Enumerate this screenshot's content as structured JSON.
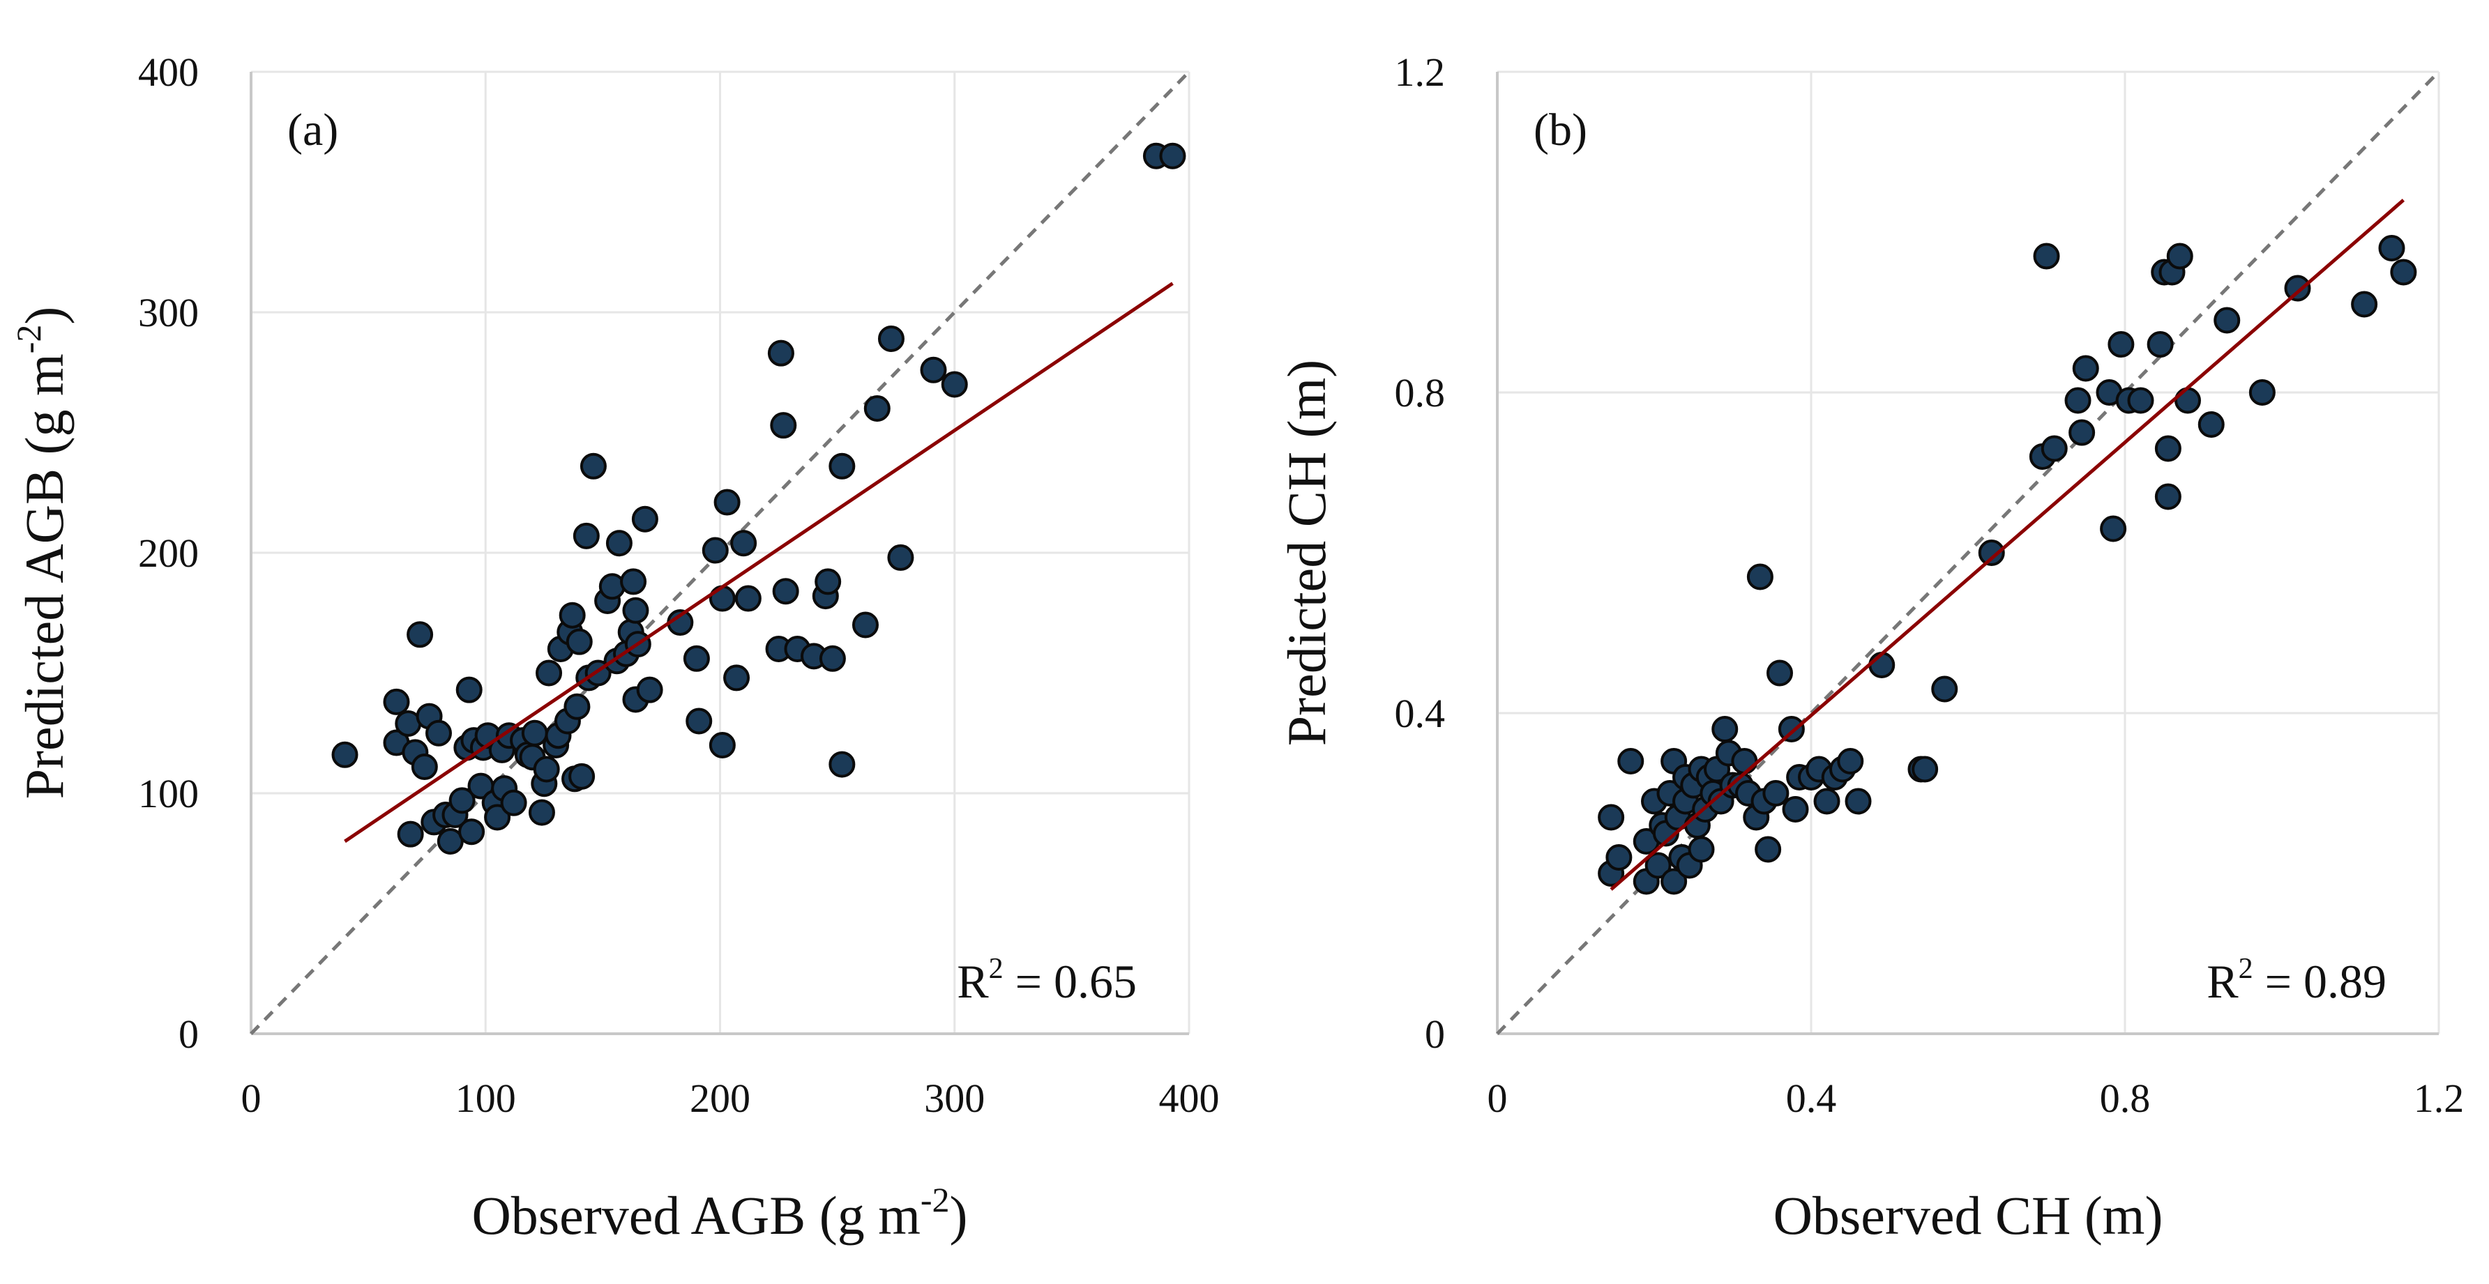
{
  "chart_data": [
    {
      "type": "scatter",
      "panel_label": "(a)",
      "xlabel": "Observed AGB (g m",
      "xlabel_sup": "-2",
      "xlabel_end": ")",
      "ylabel": "Predicted AGB (g m",
      "ylabel_sup": "-2",
      "ylabel_end": ")",
      "xlim": [
        0,
        400
      ],
      "ylim": [
        0,
        400
      ],
      "xticks": [
        0,
        100,
        200,
        300,
        400
      ],
      "yticks": [
        0,
        100,
        200,
        300,
        400
      ],
      "xtick_labels": [
        "0",
        "100",
        "200",
        "300",
        "400"
      ],
      "ytick_labels": [
        "0",
        "100",
        "200",
        "300",
        "400"
      ],
      "grid": true,
      "r2_prefix": "R",
      "r2_sup": "2",
      "r2_value": " = 0.65",
      "one_to_one_line": {
        "from": [
          0,
          0
        ],
        "to": [
          400,
          400
        ],
        "style": "dashed"
      },
      "fit_line": {
        "x1": 40,
        "y1": 80,
        "x2": 393,
        "y2": 312
      },
      "points": [
        [
          40,
          116
        ],
        [
          62,
          138
        ],
        [
          62,
          121
        ],
        [
          67,
          129
        ],
        [
          68,
          83
        ],
        [
          70,
          117
        ],
        [
          72,
          166
        ],
        [
          74,
          111
        ],
        [
          76,
          132
        ],
        [
          78,
          88
        ],
        [
          80,
          125
        ],
        [
          83,
          91
        ],
        [
          85,
          80
        ],
        [
          87,
          91
        ],
        [
          90,
          97
        ],
        [
          92,
          119
        ],
        [
          93,
          143
        ],
        [
          94,
          84
        ],
        [
          95,
          122
        ],
        [
          98,
          103
        ],
        [
          99,
          119
        ],
        [
          101,
          124
        ],
        [
          104,
          96
        ],
        [
          105,
          90
        ],
        [
          107,
          118
        ],
        [
          108,
          102
        ],
        [
          110,
          124
        ],
        [
          112,
          96
        ],
        [
          116,
          122
        ],
        [
          118,
          116
        ],
        [
          120,
          115
        ],
        [
          121,
          125
        ],
        [
          124,
          92
        ],
        [
          125,
          104
        ],
        [
          126,
          110
        ],
        [
          127,
          150
        ],
        [
          130,
          120
        ],
        [
          131,
          124
        ],
        [
          132,
          160
        ],
        [
          135,
          130
        ],
        [
          136,
          167
        ],
        [
          137,
          174
        ],
        [
          138,
          106
        ],
        [
          139,
          136
        ],
        [
          140,
          163
        ],
        [
          141,
          107
        ],
        [
          143,
          207
        ],
        [
          144,
          148
        ],
        [
          146,
          236
        ],
        [
          148,
          150
        ],
        [
          152,
          180
        ],
        [
          154,
          186
        ],
        [
          156,
          155
        ],
        [
          157,
          204
        ],
        [
          160,
          158
        ],
        [
          162,
          167
        ],
        [
          163,
          188
        ],
        [
          164,
          139
        ],
        [
          164,
          176
        ],
        [
          165,
          162
        ],
        [
          168,
          214
        ],
        [
          170,
          143
        ],
        [
          183,
          171
        ],
        [
          190,
          156
        ],
        [
          191,
          130
        ],
        [
          198,
          201
        ],
        [
          201,
          181
        ],
        [
          201,
          120
        ],
        [
          203,
          221
        ],
        [
          207,
          148
        ],
        [
          210,
          204
        ],
        [
          212,
          181
        ],
        [
          225,
          160
        ],
        [
          226,
          283
        ],
        [
          227,
          253
        ],
        [
          228,
          184
        ],
        [
          233,
          160
        ],
        [
          240,
          157
        ],
        [
          245,
          182
        ],
        [
          246,
          188
        ],
        [
          248,
          156
        ],
        [
          252,
          236
        ],
        [
          252,
          112
        ],
        [
          262,
          170
        ],
        [
          267,
          260
        ],
        [
          273,
          289
        ],
        [
          277,
          198
        ],
        [
          291,
          276
        ],
        [
          300,
          270
        ],
        [
          386,
          365
        ],
        [
          393,
          365
        ]
      ]
    },
    {
      "type": "scatter",
      "panel_label": "(b)",
      "xlabel": "Observed CH (m)",
      "ylabel": "Predicted CH (m)",
      "xlim": [
        0,
        1.2
      ],
      "ylim": [
        0,
        1.2
      ],
      "xticks": [
        0,
        0.4,
        0.8,
        1.2
      ],
      "yticks": [
        0,
        0.4,
        0.8,
        1.2
      ],
      "xtick_labels": [
        "0",
        "0.4",
        "0.8",
        "1.2"
      ],
      "ytick_labels": [
        "0",
        "0.4",
        "0.8",
        "1.2"
      ],
      "grid": true,
      "r2_prefix": "R",
      "r2_sup": "2",
      "r2_value": " = 0.89",
      "one_to_one_line": {
        "from": [
          0,
          0
        ],
        "to": [
          1.2,
          1.2
        ],
        "style": "dashed"
      },
      "fit_line": {
        "x1": 0.145,
        "y1": 0.18,
        "x2": 1.155,
        "y2": 1.04
      },
      "points": [
        [
          0.145,
          0.27
        ],
        [
          0.145,
          0.2
        ],
        [
          0.155,
          0.22
        ],
        [
          0.17,
          0.34
        ],
        [
          0.19,
          0.19
        ],
        [
          0.19,
          0.24
        ],
        [
          0.2,
          0.29
        ],
        [
          0.205,
          0.21
        ],
        [
          0.21,
          0.26
        ],
        [
          0.215,
          0.25
        ],
        [
          0.22,
          0.3
        ],
        [
          0.225,
          0.34
        ],
        [
          0.225,
          0.19
        ],
        [
          0.23,
          0.27
        ],
        [
          0.235,
          0.22
        ],
        [
          0.24,
          0.32
        ],
        [
          0.24,
          0.29
        ],
        [
          0.245,
          0.21
        ],
        [
          0.25,
          0.31
        ],
        [
          0.255,
          0.26
        ],
        [
          0.26,
          0.33
        ],
        [
          0.26,
          0.23
        ],
        [
          0.265,
          0.28
        ],
        [
          0.27,
          0.32
        ],
        [
          0.275,
          0.3
        ],
        [
          0.28,
          0.33
        ],
        [
          0.285,
          0.29
        ],
        [
          0.29,
          0.38
        ],
        [
          0.295,
          0.35
        ],
        [
          0.3,
          0.31
        ],
        [
          0.31,
          0.31
        ],
        [
          0.315,
          0.34
        ],
        [
          0.32,
          0.3
        ],
        [
          0.33,
          0.27
        ],
        [
          0.335,
          0.57
        ],
        [
          0.34,
          0.29
        ],
        [
          0.345,
          0.23
        ],
        [
          0.355,
          0.3
        ],
        [
          0.36,
          0.45
        ],
        [
          0.375,
          0.38
        ],
        [
          0.38,
          0.28
        ],
        [
          0.385,
          0.32
        ],
        [
          0.4,
          0.32
        ],
        [
          0.41,
          0.33
        ],
        [
          0.42,
          0.29
        ],
        [
          0.43,
          0.32
        ],
        [
          0.44,
          0.33
        ],
        [
          0.45,
          0.34
        ],
        [
          0.46,
          0.29
        ],
        [
          0.49,
          0.46
        ],
        [
          0.54,
          0.33
        ],
        [
          0.545,
          0.33
        ],
        [
          0.57,
          0.43
        ],
        [
          0.63,
          0.6
        ],
        [
          0.695,
          0.72
        ],
        [
          0.7,
          0.97
        ],
        [
          0.71,
          0.73
        ],
        [
          0.74,
          0.79
        ],
        [
          0.745,
          0.75
        ],
        [
          0.75,
          0.83
        ],
        [
          0.78,
          0.8
        ],
        [
          0.785,
          0.63
        ],
        [
          0.795,
          0.86
        ],
        [
          0.805,
          0.79
        ],
        [
          0.82,
          0.79
        ],
        [
          0.845,
          0.86
        ],
        [
          0.85,
          0.95
        ],
        [
          0.855,
          0.73
        ],
        [
          0.855,
          0.67
        ],
        [
          0.86,
          0.95
        ],
        [
          0.87,
          0.97
        ],
        [
          0.88,
          0.79
        ],
        [
          0.91,
          0.76
        ],
        [
          0.93,
          0.89
        ],
        [
          0.975,
          0.8
        ],
        [
          1.02,
          0.93
        ],
        [
          1.105,
          0.91
        ],
        [
          1.14,
          0.98
        ],
        [
          1.155,
          0.95
        ]
      ]
    }
  ],
  "colors": {
    "point_fill": "#1b3a57",
    "point_stroke": "#0b0b0b",
    "fit_line": "#8b0000",
    "one_to_one": "#777777",
    "grid": "#e6e6e6",
    "axis": "#c8c8c8"
  }
}
